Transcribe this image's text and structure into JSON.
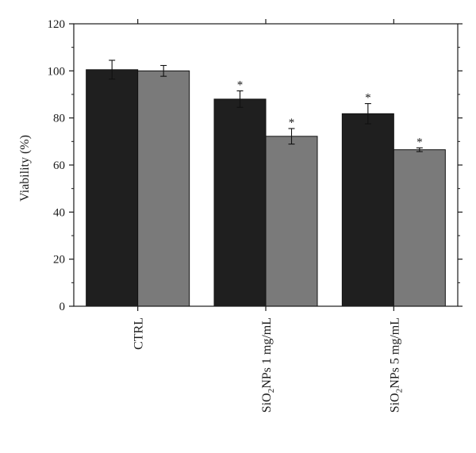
{
  "chart_data": {
    "type": "bar",
    "ylabel": "Viability (%)",
    "ylim": [
      0,
      120
    ],
    "yticks": [
      "0",
      "20",
      "40",
      "60",
      "80",
      "100",
      "120"
    ],
    "categories": [
      {
        "label": "CTRL",
        "parts": [
          {
            "t": "CTRL"
          }
        ]
      },
      {
        "label": "SiO2NPs 1 mg/mL",
        "parts": [
          {
            "t": "SiO"
          },
          {
            "t": "2",
            "sub": true
          },
          {
            "t": "NPs 1 mg/mL"
          }
        ]
      },
      {
        "label": "SiO2NPs 5 mg/mL",
        "parts": [
          {
            "t": "SiO"
          },
          {
            "t": "2",
            "sub": true
          },
          {
            "t": "NPs 5 mg/mL"
          }
        ]
      }
    ],
    "series": [
      {
        "color": "#1f1f1f",
        "values": [
          100.5,
          88,
          81.8
        ],
        "errors": [
          4,
          3.5,
          4.3
        ],
        "markers": [
          "",
          "*",
          "*"
        ]
      },
      {
        "color": "#7a7a7a",
        "values": [
          100,
          72.2,
          66.5
        ],
        "errors": [
          2.3,
          3.3,
          0.8
        ],
        "markers": [
          "",
          "*",
          "*"
        ]
      }
    ],
    "grid": false,
    "legend": "none"
  }
}
